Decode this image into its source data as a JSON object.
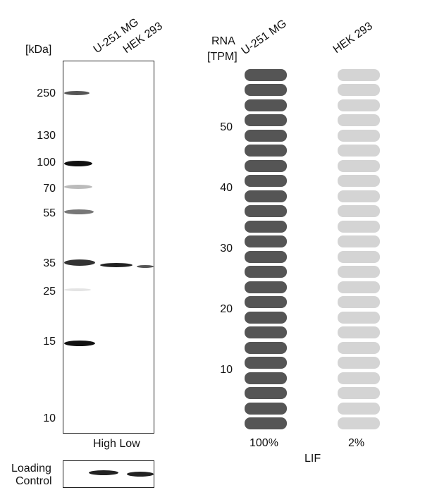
{
  "western_blot": {
    "kda_header": "[kDa]",
    "lanes": [
      "U-251 MG",
      "HEK 293"
    ],
    "markers": [
      "250",
      "130",
      "100",
      "70",
      "55",
      "35",
      "25",
      "15",
      "10"
    ],
    "bottom_label": "High Low",
    "loading_control_label_1": "Loading",
    "loading_control_label_2": "Control"
  },
  "rna": {
    "header_1": "RNA",
    "header_2": "[TPM]",
    "cell_lines": [
      "U-251 MG",
      "HEK 293"
    ],
    "y_ticks": [
      "50",
      "40",
      "30",
      "20",
      "10"
    ],
    "percent_1": "100%",
    "percent_2": "2%",
    "gene": "LIF",
    "bars_filled": [
      24,
      0
    ],
    "bars_total": 24,
    "color_filled": "#555555",
    "color_empty": "#d4d4d4"
  }
}
